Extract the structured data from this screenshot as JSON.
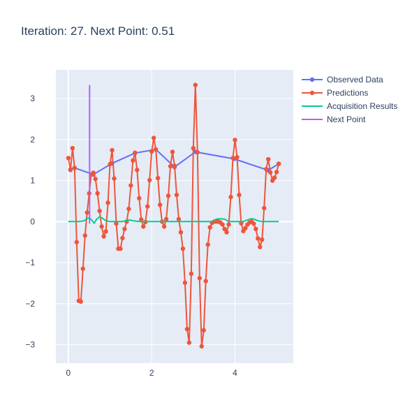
{
  "chart_data": {
    "type": "line",
    "title": "Iteration: 27. Next Point: 0.51",
    "xlabel": "",
    "ylabel": "",
    "xlim": [
      -0.3,
      5.4
    ],
    "ylim": [
      -3.45,
      3.7
    ],
    "x_ticks": [
      0,
      2,
      4
    ],
    "y_ticks": [
      -3,
      -2,
      -1,
      0,
      1,
      2,
      3
    ],
    "grid": true,
    "legend_position": "right",
    "series": [
      {
        "name": "Observed Data",
        "color": "#636efa",
        "mode": "lines+markers",
        "x": [
          0.05,
          0.15,
          0.6,
          1.05,
          1.6,
          2.1,
          2.55,
          3.05,
          3.98,
          4.8,
          5.05
        ],
        "y": [
          1.26,
          1.31,
          1.15,
          1.42,
          1.67,
          1.76,
          1.33,
          1.7,
          1.53,
          1.25,
          1.41
        ]
      },
      {
        "name": "Predictions",
        "color": "#EF553B",
        "mode": "lines+markers",
        "x": [
          0.0,
          0.05,
          0.1,
          0.15,
          0.2,
          0.25,
          0.3,
          0.35,
          0.4,
          0.45,
          0.5,
          0.55,
          0.6,
          0.65,
          0.7,
          0.75,
          0.8,
          0.85,
          0.9,
          0.95,
          1.0,
          1.05,
          1.1,
          1.15,
          1.2,
          1.25,
          1.3,
          1.35,
          1.4,
          1.45,
          1.5,
          1.55,
          1.6,
          1.65,
          1.7,
          1.75,
          1.8,
          1.85,
          1.9,
          1.95,
          2.0,
          2.05,
          2.1,
          2.15,
          2.2,
          2.25,
          2.3,
          2.35,
          2.4,
          2.45,
          2.5,
          2.55,
          2.6,
          2.65,
          2.7,
          2.75,
          2.8,
          2.85,
          2.9,
          2.95,
          3.0,
          3.05,
          3.1,
          3.15,
          3.2,
          3.25,
          3.3,
          3.35,
          3.4,
          3.45,
          3.5,
          3.55,
          3.6,
          3.65,
          3.7,
          3.75,
          3.8,
          3.85,
          3.9,
          3.95,
          4.0,
          4.05,
          4.1,
          4.15,
          4.2,
          4.25,
          4.3,
          4.35,
          4.4,
          4.45,
          4.5,
          4.55,
          4.6,
          4.65,
          4.7,
          4.75,
          4.8,
          4.85,
          4.9,
          4.95,
          5.0,
          5.05
        ],
        "y": [
          1.55,
          1.27,
          1.79,
          1.31,
          -0.5,
          -1.93,
          -1.95,
          -1.15,
          -0.34,
          0.22,
          0.69,
          1.15,
          1.19,
          1.04,
          0.69,
          0.26,
          -0.12,
          -0.36,
          -0.24,
          0.46,
          1.4,
          1.74,
          1.05,
          -0.05,
          -0.66,
          -0.66,
          -0.4,
          -0.18,
          0.0,
          0.31,
          0.88,
          1.49,
          1.68,
          1.26,
          0.57,
          0.05,
          -0.12,
          -0.01,
          0.37,
          1.01,
          1.71,
          2.04,
          1.76,
          1.06,
          0.41,
          0.0,
          -0.12,
          0.06,
          0.63,
          1.35,
          1.7,
          1.36,
          0.65,
          0.06,
          -0.26,
          -0.66,
          -1.49,
          -2.62,
          -2.95,
          -1.27,
          1.79,
          3.33,
          1.69,
          -1.38,
          -3.04,
          -2.65,
          -1.45,
          -0.56,
          -0.14,
          -0.03,
          0.0,
          0.0,
          0.0,
          -0.02,
          -0.07,
          -0.18,
          -0.26,
          -0.07,
          0.6,
          1.55,
          1.99,
          1.57,
          0.65,
          -0.04,
          -0.23,
          -0.16,
          -0.07,
          -0.02,
          0.0,
          -0.05,
          -0.18,
          -0.41,
          -0.62,
          -0.44,
          0.33,
          1.28,
          1.52,
          1.2,
          1.0,
          1.07,
          1.21,
          1.41
        ]
      },
      {
        "name": "Acquisition Results",
        "color": "#00cc96",
        "mode": "lines",
        "x": [
          0.0,
          0.25,
          0.38,
          0.45,
          0.5,
          0.55,
          0.62,
          0.68,
          0.75,
          0.82,
          0.9,
          1.0,
          1.3,
          1.4,
          1.48,
          1.55,
          1.7,
          2.3,
          3.45,
          3.55,
          3.65,
          3.75,
          3.85,
          4.2,
          4.3,
          4.38,
          4.46,
          4.55,
          4.65,
          5.05
        ],
        "y": [
          0.0,
          0.0,
          0.02,
          0.08,
          0.09,
          0.05,
          -0.04,
          0.06,
          0.12,
          0.08,
          0.02,
          0.0,
          0.0,
          0.03,
          0.04,
          0.02,
          0.0,
          0.0,
          0.0,
          0.06,
          0.07,
          0.06,
          0.0,
          0.0,
          0.04,
          0.07,
          0.06,
          0.02,
          0.0,
          0.0
        ]
      },
      {
        "name": "Next Point",
        "color": "#ab63fa",
        "mode": "lines",
        "x": [
          0.51,
          0.51
        ],
        "y": [
          -0.05,
          3.33
        ]
      }
    ]
  }
}
